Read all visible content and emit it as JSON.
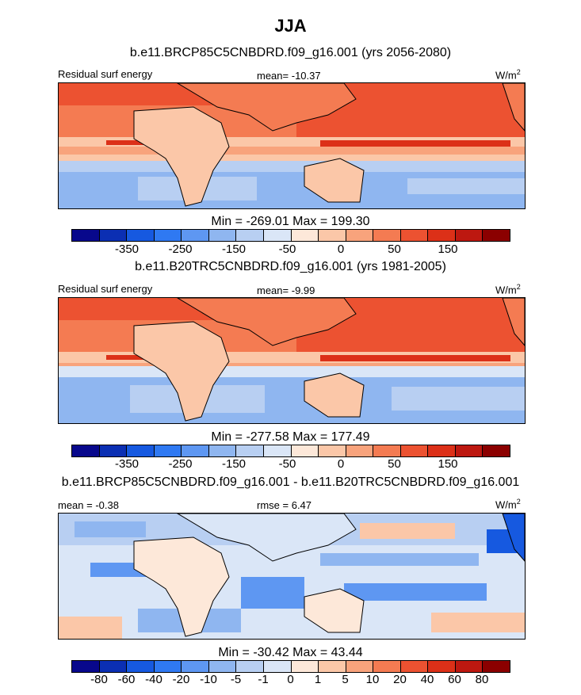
{
  "title": "JJA",
  "panel1": {
    "case": "b.e11.BRCP85C5CNBDRD.f09_g16.001 (yrs 2056-2080)",
    "left": "Residual surf energy",
    "center_label": "mean=",
    "center_value": "-10.37",
    "units": "W/m",
    "units_sup": "2",
    "min_label": "Min =",
    "min": "-269.01",
    "max_label": "Max =",
    "max": "199.30",
    "ticks": [
      "-350",
      "-250",
      "-150",
      "-50",
      "0",
      "50",
      "150"
    ]
  },
  "panel2": {
    "case": "b.e11.B20TRC5CNBDRD.f09_g16.001 (yrs 1981-2005)",
    "left": "Residual surf energy",
    "center_label": "mean=",
    "center_value": "-9.99",
    "units": "W/m",
    "units_sup": "2",
    "min_label": "Min =",
    "min": "-277.58",
    "max_label": "Max =",
    "max": "177.49",
    "ticks": [
      "-350",
      "-250",
      "-150",
      "-50",
      "0",
      "50",
      "150"
    ]
  },
  "panel3": {
    "case": "b.e11.BRCP85C5CNBDRD.f09_g16.001 - b.e11.B20TRC5CNBDRD.f09_g16.001",
    "left": "mean =  -0.38",
    "center_label": "rmse =",
    "center_value": "6.47",
    "units": "W/m",
    "units_sup": "2",
    "min_label": "Min =",
    "min": "-30.42",
    "max_label": "Max =",
    "max": "43.44",
    "ticks": [
      "-80",
      "-60",
      "-40",
      "-20",
      "-10",
      "-5",
      "-1",
      "0",
      "1",
      "5",
      "10",
      "20",
      "40",
      "60",
      "80"
    ]
  },
  "colors": {
    "scale": [
      "#08088c",
      "#0b2fb3",
      "#1659e0",
      "#2f79f2",
      "#5e97f2",
      "#8fb6f0",
      "#b8cff2",
      "#dae6f7",
      "#fde8d9",
      "#fbc7a8",
      "#f8a37c",
      "#f47b52",
      "#ec5231",
      "#dc3018",
      "#bd1810",
      "#8b0000"
    ]
  }
}
